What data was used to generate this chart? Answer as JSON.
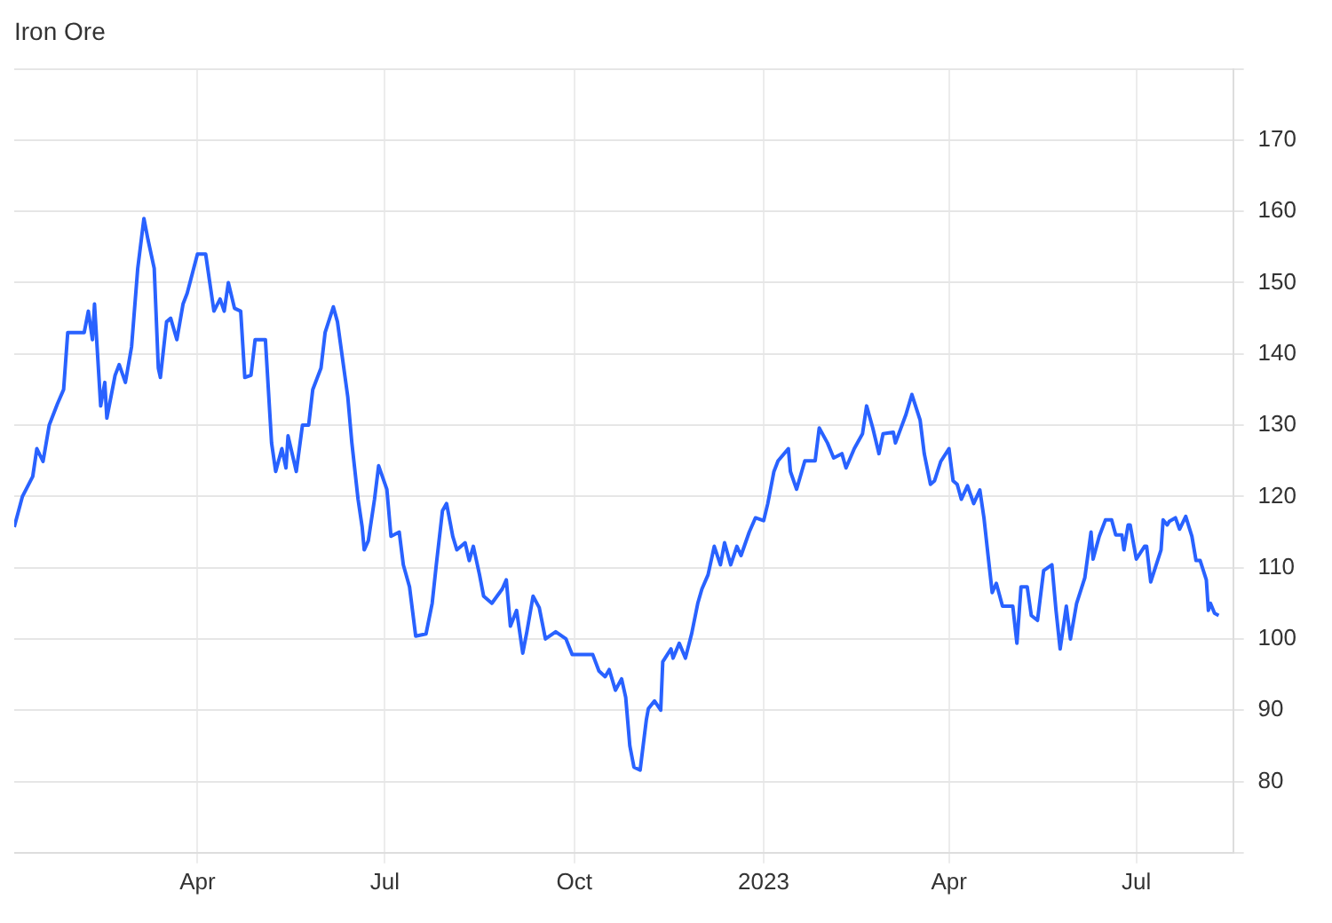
{
  "chart_data": {
    "type": "line",
    "title": "Iron Ore",
    "x": [
      "2022-01-02",
      "2022-01-06",
      "2022-01-11",
      "2022-01-13",
      "2022-01-16",
      "2022-01-19",
      "2022-01-23",
      "2022-01-26",
      "2022-01-28",
      "2022-02-05",
      "2022-02-07",
      "2022-02-09",
      "2022-02-10",
      "2022-02-13",
      "2022-02-15",
      "2022-02-16",
      "2022-02-20",
      "2022-02-22",
      "2022-02-25",
      "2022-02-28",
      "2022-03-03",
      "2022-03-06",
      "2022-03-08",
      "2022-03-11",
      "2022-03-13",
      "2022-03-14",
      "2022-03-17",
      "2022-03-19",
      "2022-03-22",
      "2022-03-25",
      "2022-03-27",
      "2022-04-01",
      "2022-04-05",
      "2022-04-07",
      "2022-04-09",
      "2022-04-12",
      "2022-04-14",
      "2022-04-16",
      "2022-04-19",
      "2022-04-22",
      "2022-04-24",
      "2022-04-27",
      "2022-04-29",
      "2022-05-04",
      "2022-05-07",
      "2022-05-09",
      "2022-05-12",
      "2022-05-14",
      "2022-05-15",
      "2022-05-19",
      "2022-05-22",
      "2022-05-25",
      "2022-05-27",
      "2022-05-31",
      "2022-06-02",
      "2022-06-06",
      "2022-06-08",
      "2022-06-13",
      "2022-06-15",
      "2022-06-18",
      "2022-06-20",
      "2022-06-21",
      "2022-06-23",
      "2022-06-26",
      "2022-06-28",
      "2022-07-02",
      "2022-07-04",
      "2022-07-08",
      "2022-07-10",
      "2022-07-13",
      "2022-07-16",
      "2022-07-21",
      "2022-07-24",
      "2022-07-26",
      "2022-07-29",
      "2022-07-31",
      "2022-08-03",
      "2022-08-05",
      "2022-08-09",
      "2022-08-11",
      "2022-08-13",
      "2022-08-16",
      "2022-08-18",
      "2022-08-22",
      "2022-08-27",
      "2022-08-29",
      "2022-08-31",
      "2022-09-03",
      "2022-09-06",
      "2022-09-08",
      "2022-09-11",
      "2022-09-14",
      "2022-09-17",
      "2022-09-22",
      "2022-09-27",
      "2022-09-30",
      "2022-10-10",
      "2022-10-13",
      "2022-10-16",
      "2022-10-18",
      "2022-10-21",
      "2022-10-24",
      "2022-10-26",
      "2022-10-28",
      "2022-10-30",
      "2022-11-02",
      "2022-11-05",
      "2022-11-06",
      "2022-11-09",
      "2022-11-12",
      "2022-11-13",
      "2022-11-17",
      "2022-11-18",
      "2022-11-21",
      "2022-11-24",
      "2022-11-27",
      "2022-11-30",
      "2022-12-02",
      "2022-12-05",
      "2022-12-08",
      "2022-12-11",
      "2022-12-13",
      "2022-12-16",
      "2022-12-19",
      "2022-12-21",
      "2022-12-25",
      "2022-12-28",
      "2023-01-01",
      "2023-01-03",
      "2023-01-06",
      "2023-01-08",
      "2023-01-13",
      "2023-01-14",
      "2023-01-17",
      "2023-01-21",
      "2023-01-26",
      "2023-01-28",
      "2023-02-01",
      "2023-02-04",
      "2023-02-08",
      "2023-02-10",
      "2023-02-14",
      "2023-02-18",
      "2023-02-20",
      "2023-02-23",
      "2023-02-26",
      "2023-02-28",
      "2023-03-05",
      "2023-03-06",
      "2023-03-11",
      "2023-03-14",
      "2023-03-18",
      "2023-03-20",
      "2023-03-23",
      "2023-03-25",
      "2023-03-28",
      "2023-04-01",
      "2023-04-03",
      "2023-04-05",
      "2023-04-07",
      "2023-04-10",
      "2023-04-13",
      "2023-04-16",
      "2023-04-18",
      "2023-04-20",
      "2023-04-22",
      "2023-04-24",
      "2023-04-27",
      "2023-05-02",
      "2023-05-04",
      "2023-05-06",
      "2023-05-09",
      "2023-05-11",
      "2023-05-14",
      "2023-05-17",
      "2023-05-21",
      "2023-05-23",
      "2023-05-25",
      "2023-05-28",
      "2023-05-30",
      "2023-06-02",
      "2023-06-06",
      "2023-06-09",
      "2023-06-10",
      "2023-06-13",
      "2023-06-16",
      "2023-06-19",
      "2023-06-21",
      "2023-06-24",
      "2023-06-25",
      "2023-06-27",
      "2023-06-28",
      "2023-07-01",
      "2023-07-05",
      "2023-07-06",
      "2023-07-08",
      "2023-07-13",
      "2023-07-14",
      "2023-07-16",
      "2023-07-17",
      "2023-07-20",
      "2023-07-22",
      "2023-07-25",
      "2023-07-28",
      "2023-07-30",
      "2023-08-01",
      "2023-08-04",
      "2023-08-05",
      "2023-08-06",
      "2023-08-08",
      "2023-08-10"
    ],
    "series": [
      {
        "color": "#2962ff",
        "values": [
          115.7,
          120,
          122.8,
          126.7,
          124.9,
          130,
          133,
          135,
          143,
          143,
          146,
          142,
          147,
          132.7,
          136,
          131,
          137,
          138.5,
          136,
          141,
          152,
          159,
          156,
          152,
          138,
          136.7,
          144.5,
          145,
          142,
          147,
          148.5,
          154,
          154,
          150,
          146,
          147.7,
          146,
          150,
          146.4,
          146,
          136.7,
          137,
          142,
          142,
          127.5,
          123.5,
          126.7,
          124,
          128.5,
          123.5,
          130,
          130,
          135,
          138,
          143,
          146.6,
          144.5,
          134,
          127.5,
          119.6,
          115.7,
          112.5,
          113.8,
          119.6,
          124.3,
          121,
          114.4,
          115,
          110.4,
          107.3,
          100.4,
          100.7,
          105,
          110.4,
          118,
          119,
          114.4,
          112.5,
          113.5,
          111,
          113,
          109,
          106,
          105,
          107,
          108.3,
          101.8,
          104,
          98,
          101,
          106,
          104.4,
          100,
          101,
          100,
          97.8,
          97.8,
          95.5,
          94.7,
          95.7,
          92.8,
          94.4,
          91.8,
          85,
          82,
          81.6,
          88.6,
          90.2,
          91.3,
          90,
          96.8,
          98.6,
          97.3,
          99.4,
          97.3,
          100.7,
          105,
          107,
          109,
          113,
          110.4,
          113.5,
          110.4,
          113,
          111.7,
          115,
          117,
          116.6,
          119,
          123.5,
          125,
          126.7,
          123.5,
          121,
          125,
          125,
          129.6,
          127.5,
          125.4,
          126,
          124,
          126.7,
          128.8,
          132.7,
          129.6,
          126,
          128.8,
          129,
          127.5,
          131.4,
          134.3,
          130.7,
          126,
          121.7,
          122.2,
          124.9,
          126.7,
          122.2,
          121.7,
          119.6,
          121.5,
          119,
          120.9,
          117,
          111.7,
          106.5,
          107.8,
          104.6,
          104.6,
          99.4,
          107.3,
          107.3,
          103.3,
          102.6,
          109.6,
          110.4,
          104,
          98.6,
          104.6,
          100,
          105,
          108.6,
          115,
          111.2,
          114.4,
          116.7,
          116.7,
          114.6,
          114.6,
          112.5,
          116,
          116,
          111.2,
          113,
          113,
          108,
          112.5,
          116.7,
          116,
          116.5,
          117,
          115.4,
          117.2,
          114.4,
          111,
          111,
          108.3,
          104,
          105,
          103.6,
          103.3
        ]
      }
    ],
    "xlim": [
      "2022-01-02",
      "2023-08-17"
    ],
    "xticks": [
      {
        "value": "2022-04-01",
        "label": "Apr"
      },
      {
        "value": "2022-07-01",
        "label": "Jul"
      },
      {
        "value": "2022-10-01",
        "label": "Oct"
      },
      {
        "value": "2023-01-01",
        "label": "2023"
      },
      {
        "value": "2023-04-01",
        "label": "Apr"
      },
      {
        "value": "2023-07-01",
        "label": "Jul"
      }
    ],
    "ylim": [
      70,
      180
    ],
    "yticks": [
      {
        "value": 70,
        "label": null
      },
      80,
      90,
      100,
      110,
      120,
      130,
      140,
      150,
      160,
      170,
      {
        "value": 180,
        "label": null
      }
    ],
    "grid": true,
    "legend": false,
    "marker": "none",
    "line_style": "solid"
  }
}
